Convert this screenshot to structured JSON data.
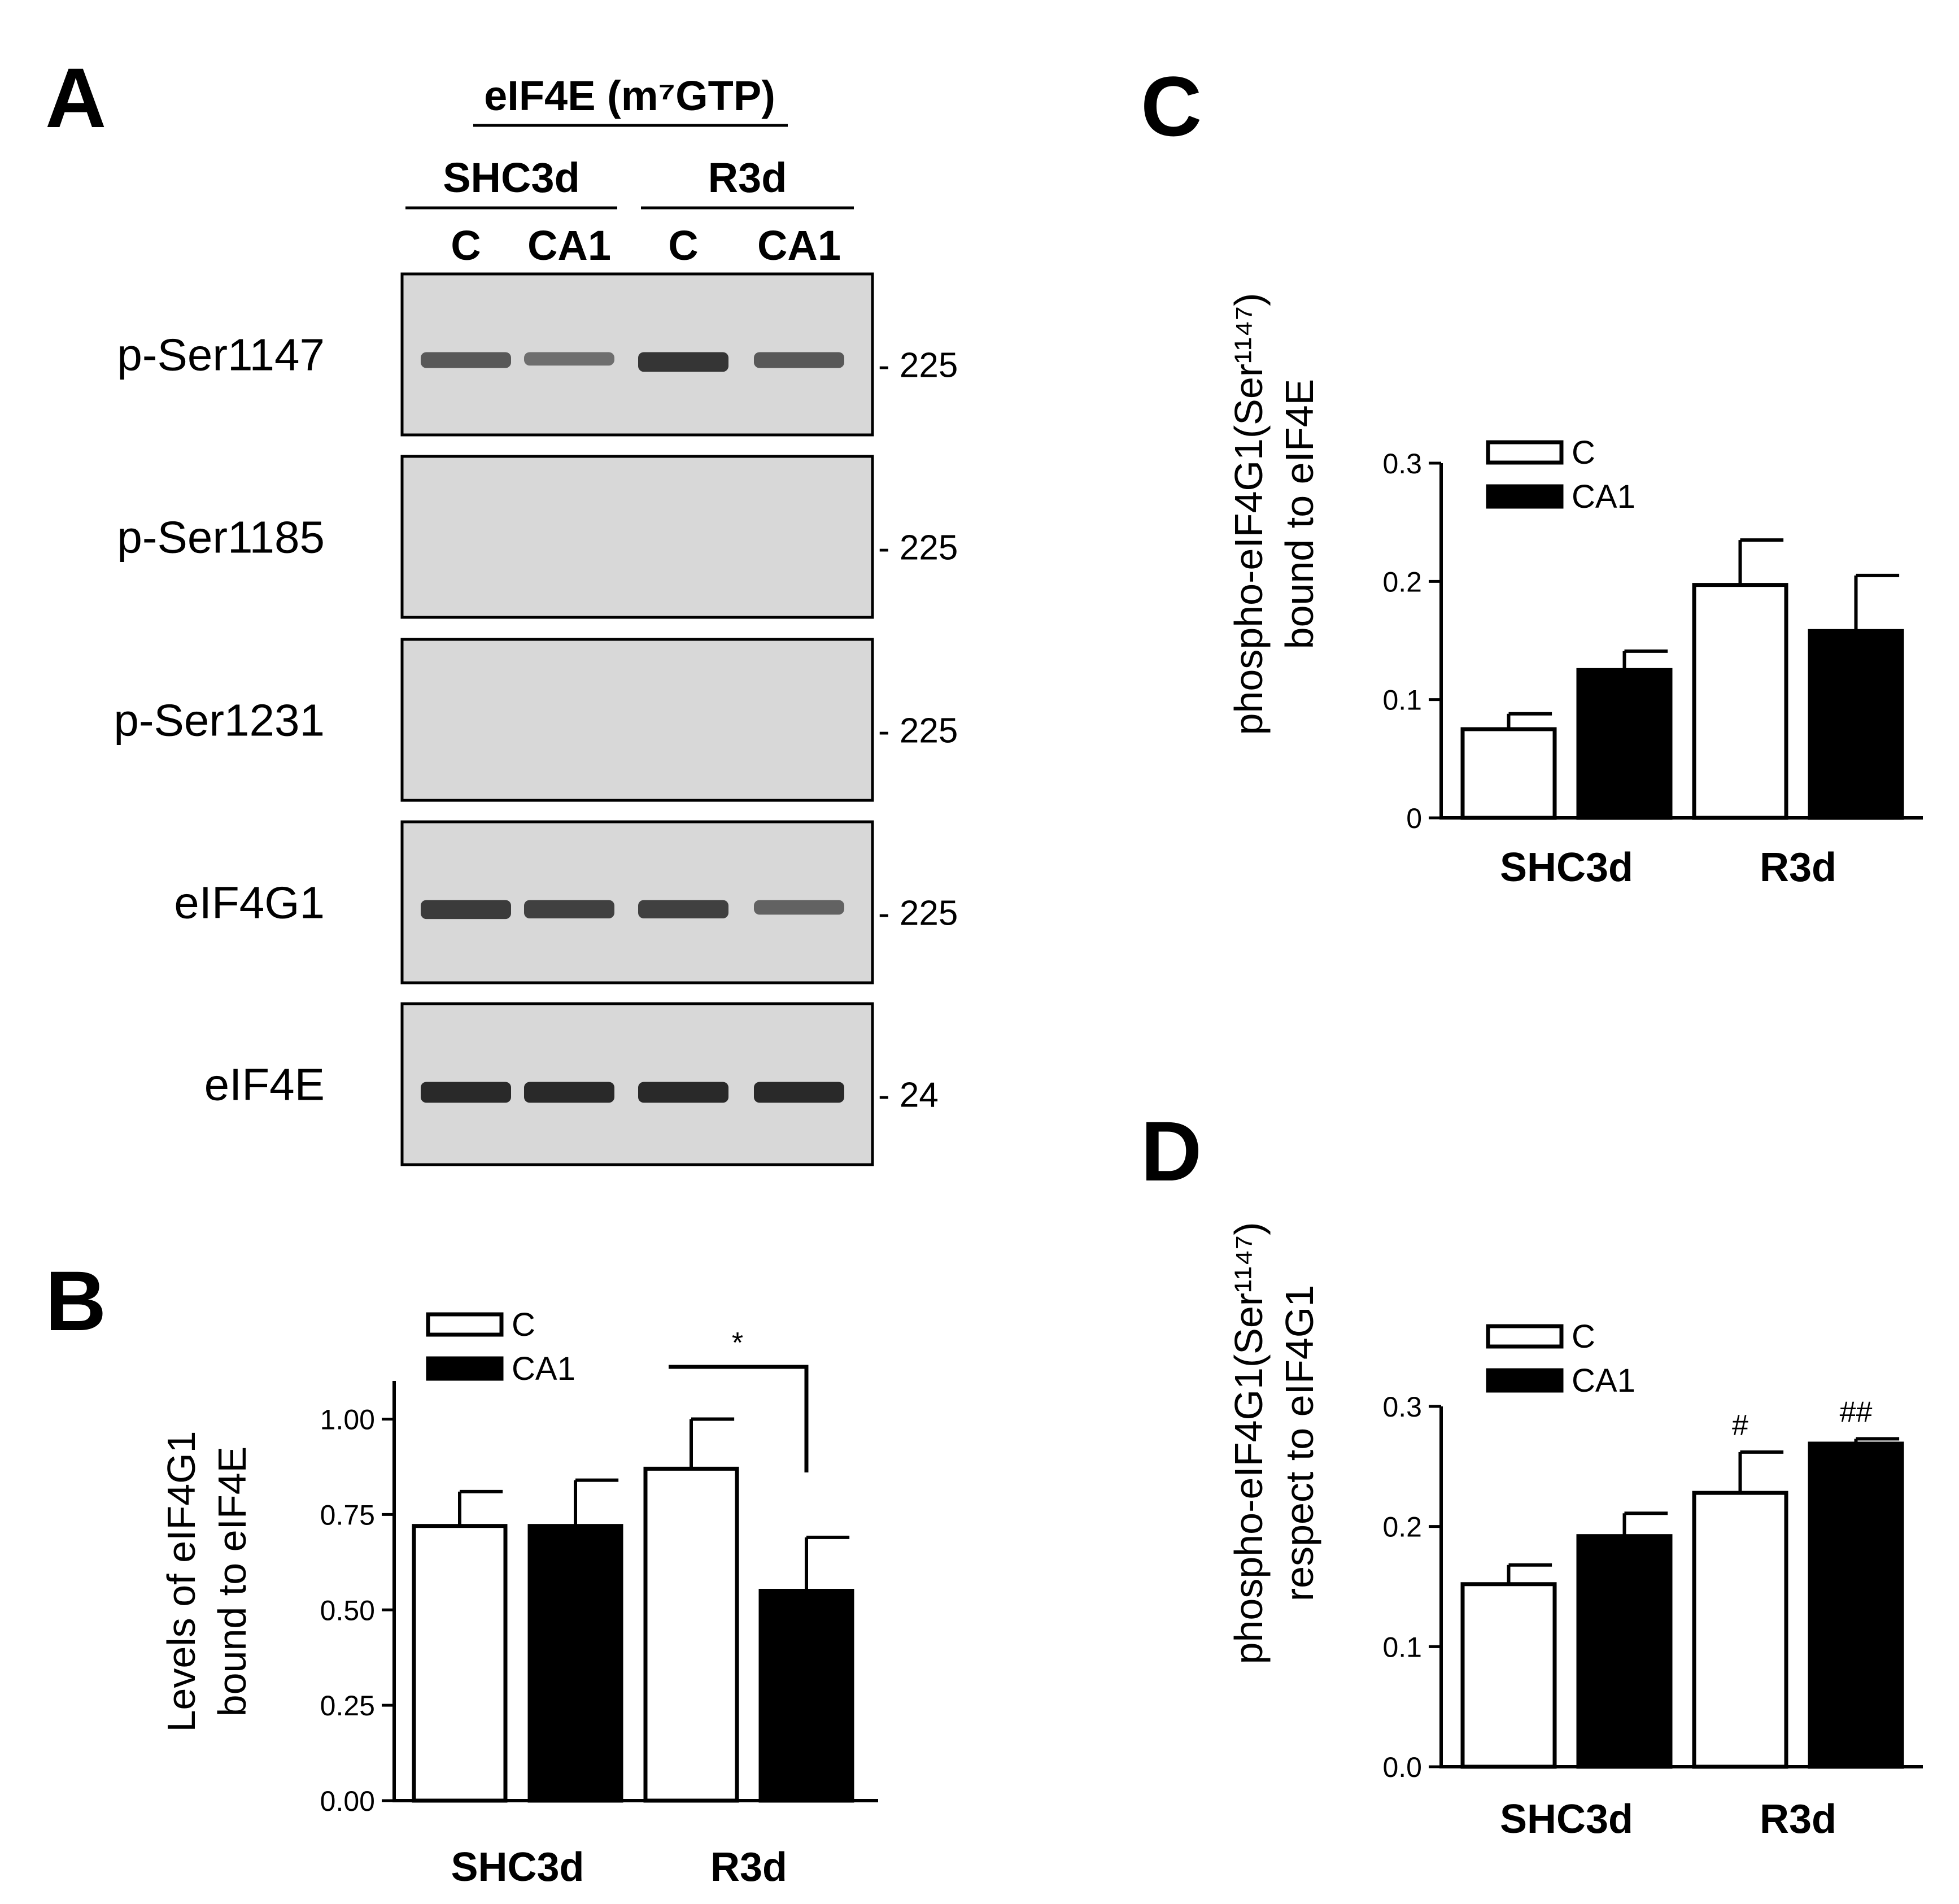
{
  "panels": {
    "A": "A",
    "B": "B",
    "C": "C",
    "D": "D"
  },
  "blot": {
    "title": "eIF4E (m⁷GTP)",
    "groups": [
      "SHC3d",
      "R3d"
    ],
    "lanes": [
      "C",
      "CA1",
      "C",
      "CA1"
    ],
    "rows": [
      {
        "label": "p-Ser1147",
        "mw": "- 225",
        "intensity": [
          0.55,
          0.35,
          0.85,
          0.55
        ]
      },
      {
        "label": "p-Ser1185",
        "mw": "- 225",
        "intensity": [
          0,
          0,
          0,
          0
        ]
      },
      {
        "label": "p-Ser1231",
        "mw": "- 225",
        "intensity": [
          0,
          0,
          0,
          0
        ]
      },
      {
        "label": "eIF4G1",
        "mw": "- 225",
        "intensity": [
          0.8,
          0.75,
          0.75,
          0.45
        ]
      },
      {
        "label": "eIF4E",
        "mw": "- 24",
        "intensity": [
          0.95,
          0.95,
          0.95,
          0.95
        ]
      }
    ]
  },
  "colors": {
    "c_fill": "#ffffff",
    "ca1_fill": "#000000",
    "band": "#1a1a1a",
    "blot_bg": "#d8d8d8"
  },
  "chart_data": [
    {
      "panel": "B",
      "type": "bar",
      "categories": [
        "SHC3d",
        "R3d"
      ],
      "series": [
        {
          "name": "C",
          "values": [
            0.72,
            0.87
          ],
          "errors": [
            0.09,
            0.13
          ]
        },
        {
          "name": "CA1",
          "values": [
            0.72,
            0.55
          ],
          "errors": [
            0.12,
            0.14
          ]
        }
      ],
      "ylabel": [
        "Levels of eIF4G1",
        "bound to eIF4E"
      ],
      "ylim": [
        0,
        1.1
      ],
      "yticks": [
        "0.00",
        "0.25",
        "0.50",
        "0.75",
        "1.00"
      ],
      "tick_values": [
        0,
        0.25,
        0.5,
        0.75,
        1.0
      ],
      "legend_position": "top-left",
      "annotations": [
        {
          "text": "*",
          "type": "bracket",
          "between": [
            "R3d C",
            "R3d CA1"
          ]
        }
      ]
    },
    {
      "panel": "C",
      "type": "bar",
      "categories": [
        "SHC3d",
        "R3d"
      ],
      "series": [
        {
          "name": "C",
          "values": [
            0.075,
            0.197
          ],
          "errors": [
            0.013,
            0.038
          ]
        },
        {
          "name": "CA1",
          "values": [
            0.125,
            0.158
          ],
          "errors": [
            0.016,
            0.047
          ]
        }
      ],
      "ylabel": [
        "phospho-eIF4G1(Ser¹¹⁴⁷)",
        "bound to eIF4E"
      ],
      "ylim": [
        0,
        0.3
      ],
      "yticks": [
        "0",
        "0.1",
        "0.2",
        "0.3"
      ],
      "tick_values": [
        0,
        0.1,
        0.2,
        0.3
      ],
      "legend_position": "top-left",
      "annotations": []
    },
    {
      "panel": "D",
      "type": "bar",
      "categories": [
        "SHC3d",
        "R3d"
      ],
      "series": [
        {
          "name": "C",
          "values": [
            0.152,
            0.228
          ],
          "errors": [
            0.016,
            0.034
          ]
        },
        {
          "name": "CA1",
          "values": [
            0.192,
            0.269
          ],
          "errors": [
            0.019,
            0.004
          ]
        }
      ],
      "ylabel": [
        "phospho-eIF4G1(Ser¹¹⁴⁷)",
        "respect to eIF4G1"
      ],
      "ylim": [
        0,
        0.3
      ],
      "yticks": [
        "0.0",
        "0.1",
        "0.2",
        "0.3"
      ],
      "tick_values": [
        0,
        0.1,
        0.2,
        0.3
      ],
      "legend_position": "top-left",
      "annotations": [
        {
          "text": "#",
          "type": "mark",
          "on": "R3d C"
        },
        {
          "text": "##",
          "type": "mark",
          "on": "R3d CA1"
        }
      ]
    }
  ]
}
